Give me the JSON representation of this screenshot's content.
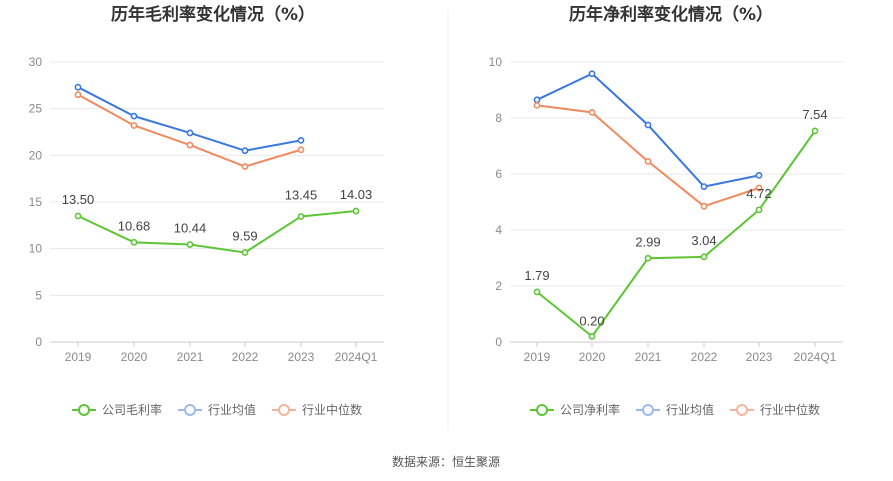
{
  "source": "数据来源：恒生聚源",
  "chart_data": [
    {
      "type": "line",
      "title": "历年毛利率变化情况（%）",
      "categories": [
        "2019",
        "2020",
        "2021",
        "2022",
        "2023",
        "2024Q1"
      ],
      "ylim": [
        0,
        30
      ],
      "yticks": [
        "0",
        "5",
        "10",
        "15",
        "20",
        "25",
        "30"
      ],
      "grid": true,
      "legend_position": "bottom-center",
      "series": [
        {
          "name": "公司毛利率",
          "color": "#5dc535",
          "values": [
            13.5,
            10.68,
            10.44,
            9.59,
            13.45,
            14.03
          ],
          "labels": [
            "13.50",
            "10.68",
            "10.44",
            "9.59",
            "13.45",
            "14.03"
          ]
        },
        {
          "name": "行业均值",
          "color": "#3b78dd",
          "values": [
            27.3,
            24.2,
            22.4,
            20.5,
            21.6,
            null
          ],
          "labels": []
        },
        {
          "name": "行业中位数",
          "color": "#f08a60",
          "values": [
            26.5,
            23.2,
            21.1,
            18.8,
            20.6,
            null
          ],
          "labels": []
        }
      ]
    },
    {
      "type": "line",
      "title": "历年净利率变化情况（%）",
      "categories": [
        "2019",
        "2020",
        "2021",
        "2022",
        "2023",
        "2024Q1"
      ],
      "ylim": [
        0,
        10
      ],
      "yticks": [
        "0",
        "2",
        "4",
        "6",
        "8",
        "10"
      ],
      "grid": true,
      "legend_position": "bottom-center",
      "series": [
        {
          "name": "公司净利率",
          "color": "#5dc535",
          "values": [
            1.79,
            0.2,
            2.99,
            3.04,
            4.72,
            7.54
          ],
          "labels": [
            "1.79",
            "0.20",
            "2.99",
            "3.04",
            "4.72",
            "7.54"
          ]
        },
        {
          "name": "行业均值",
          "color": "#3b78dd",
          "values": [
            8.65,
            9.58,
            7.75,
            5.55,
            5.95,
            null
          ],
          "labels": []
        },
        {
          "name": "行业中位数",
          "color": "#f08a60",
          "values": [
            8.45,
            8.2,
            6.45,
            4.85,
            5.5,
            null
          ],
          "labels": []
        }
      ]
    }
  ]
}
